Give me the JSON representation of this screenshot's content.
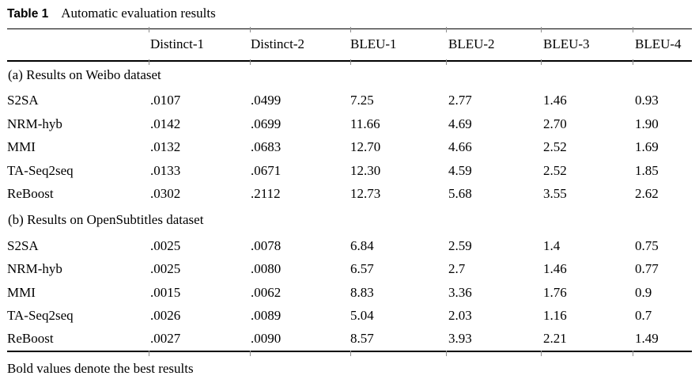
{
  "caption": {
    "label": "Table 1",
    "text": "Automatic evaluation results"
  },
  "table": {
    "columns": [
      "Distinct-1",
      "Distinct-2",
      "BLEU-1",
      "BLEU-2",
      "BLEU-3",
      "BLEU-4"
    ],
    "sections": [
      {
        "header": "(a) Results on Weibo dataset",
        "rows": [
          {
            "model": "S2SA",
            "values": [
              ".0107",
              ".0499",
              "7.25",
              "2.77",
              "1.46",
              "0.93"
            ],
            "bold": [
              false,
              false,
              false,
              false,
              false,
              false
            ]
          },
          {
            "model": "NRM-hyb",
            "values": [
              ".0142",
              ".0699",
              "11.66",
              "4.69",
              "2.70",
              "1.90"
            ],
            "bold": [
              false,
              false,
              false,
              false,
              false,
              false
            ]
          },
          {
            "model": "MMI",
            "values": [
              ".0132",
              ".0683",
              "12.70",
              "4.66",
              "2.52",
              "1.69"
            ],
            "bold": [
              false,
              false,
              false,
              false,
              false,
              false
            ]
          },
          {
            "model": "TA-Seq2seq",
            "values": [
              ".0133",
              ".0671",
              "12.30",
              "4.59",
              "2.52",
              "1.85"
            ],
            "bold": [
              false,
              false,
              false,
              false,
              false,
              false
            ]
          },
          {
            "model": "ReBoost",
            "values": [
              ".0302",
              ".2112",
              "12.73",
              "5.68",
              "3.55",
              "2.62"
            ],
            "bold": [
              true,
              true,
              true,
              true,
              true,
              true
            ]
          }
        ]
      },
      {
        "header": "(b) Results on OpenSubtitles dataset",
        "rows": [
          {
            "model": "S2SA",
            "values": [
              ".0025",
              ".0078",
              "6.84",
              "2.59",
              "1.4",
              "0.75"
            ],
            "bold": [
              false,
              false,
              false,
              false,
              false,
              false
            ]
          },
          {
            "model": "NRM-hyb",
            "values": [
              ".0025",
              ".0080",
              "6.57",
              "2.7",
              "1.46",
              "0.77"
            ],
            "bold": [
              false,
              false,
              false,
              false,
              false,
              false
            ]
          },
          {
            "model": "MMI",
            "values": [
              ".0015",
              ".0062",
              "8.83",
              "3.36",
              "1.76",
              "0.9"
            ],
            "bold": [
              false,
              false,
              true,
              false,
              false,
              false
            ]
          },
          {
            "model": "TA-Seq2seq",
            "values": [
              ".0026",
              ".0089",
              "5.04",
              "2.03",
              "1.16",
              "0.7"
            ],
            "bold": [
              false,
              false,
              false,
              false,
              false,
              false
            ]
          },
          {
            "model": "ReBoost",
            "values": [
              ".0027",
              ".0090",
              "8.57",
              "3.93",
              "2.21",
              "1.49"
            ],
            "bold": [
              true,
              true,
              false,
              true,
              true,
              true
            ]
          }
        ]
      }
    ]
  },
  "footnote": "Bold values denote the best results"
}
